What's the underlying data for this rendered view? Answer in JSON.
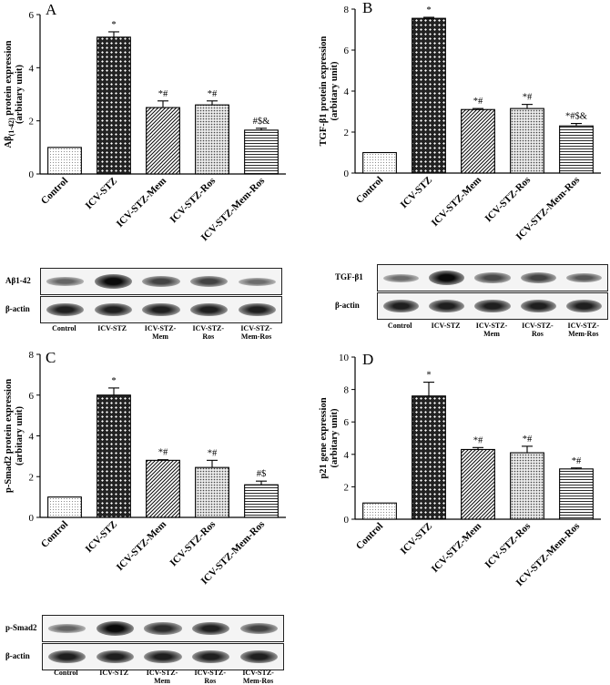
{
  "chart_data": [
    {
      "panel": "A",
      "type": "bar",
      "ylabel_main": "Aβ",
      "ylabel_sub": "(1-42)",
      "ylabel_rest": " protein expression",
      "ylabel2": "(arbitary unit)",
      "categories": [
        "Control",
        "ICV-STZ",
        "ICV-STZ-Mem",
        "ICV-STZ-Ros",
        "ICV-STZ-Mem-Ros"
      ],
      "values": [
        1.0,
        5.15,
        2.5,
        2.6,
        1.65
      ],
      "errors": [
        0.0,
        0.2,
        0.25,
        0.15,
        0.07
      ],
      "annotations": [
        "",
        "*",
        "*#",
        "*#",
        "#$&"
      ],
      "patterns": [
        "dots",
        "cross",
        "diag",
        "grid",
        "horiz"
      ],
      "ylim": [
        0,
        6
      ],
      "yticks": [
        0,
        2,
        4,
        6
      ]
    },
    {
      "panel": "B",
      "type": "bar",
      "ylabel_main": "TGF-β1 protein expression",
      "ylabel2": "(arbitary unit)",
      "categories": [
        "Control",
        "ICV-STZ",
        "ICV-STZ-Mem",
        "ICV-STZ-Ros",
        "ICV-STZ-Mem-Ros"
      ],
      "values": [
        1.0,
        7.55,
        3.1,
        3.15,
        2.3
      ],
      "errors": [
        0.0,
        0.05,
        0.05,
        0.2,
        0.12
      ],
      "annotations": [
        "",
        "*",
        "*#",
        "*#",
        "*#$&"
      ],
      "patterns": [
        "dots",
        "cross",
        "diag",
        "grid",
        "horiz"
      ],
      "ylim": [
        0,
        8
      ],
      "yticks": [
        0,
        2,
        4,
        6,
        8
      ]
    },
    {
      "panel": "C",
      "type": "bar",
      "ylabel_main": "p-Smad2 protein expression",
      "ylabel2": "(arbitary unit)",
      "categories": [
        "Control",
        "ICV-STZ",
        "ICV-STZ-Mem",
        "ICV-STZ-Ros",
        "ICV-STZ-Mem-Ros"
      ],
      "values": [
        1.0,
        6.0,
        2.8,
        2.45,
        1.6
      ],
      "errors": [
        0.0,
        0.35,
        0.03,
        0.35,
        0.18
      ],
      "annotations": [
        "",
        "*",
        "*#",
        "*#",
        "#$"
      ],
      "patterns": [
        "dots",
        "cross",
        "diag",
        "grid",
        "horiz"
      ],
      "ylim": [
        0,
        8
      ],
      "yticks": [
        0,
        2,
        4,
        6,
        8
      ]
    },
    {
      "panel": "D",
      "type": "bar",
      "ylabel_main": "p21 gene expression",
      "ylabel2": "(arbitary unit)",
      "categories": [
        "Control",
        "ICV-STZ",
        "ICV-STZ-Mem",
        "ICV-STZ-Ros",
        "ICV-STZ-Mem-Ros"
      ],
      "values": [
        1.0,
        7.6,
        4.3,
        4.1,
        3.1
      ],
      "errors": [
        0.0,
        0.85,
        0.12,
        0.4,
        0.06
      ],
      "annotations": [
        "",
        "*",
        "*#",
        "*#",
        "*#"
      ],
      "patterns": [
        "dots",
        "cross",
        "diag",
        "grid",
        "horiz"
      ],
      "ylim": [
        0,
        10
      ],
      "yticks": [
        0,
        2,
        4,
        6,
        8,
        10
      ]
    }
  ],
  "blots": [
    {
      "id": "A",
      "rows": [
        "Aβ1-42",
        "β-actin"
      ],
      "lanes": [
        "Control",
        "ICV-STZ",
        "ICV-STZ-\nMem",
        "ICV-STZ-\nRos",
        "ICV-STZ-\nMem-Ros"
      ],
      "intensity": [
        [
          0.35,
          1.0,
          0.6,
          0.6,
          0.3
        ],
        [
          0.85,
          0.85,
          0.85,
          0.85,
          0.85
        ]
      ]
    },
    {
      "id": "B",
      "rows": [
        "TGF-β1",
        "β-actin"
      ],
      "lanes": [
        "Control",
        "ICV-STZ",
        "ICV-STZ-\nMem",
        "ICV-STZ-\nRos",
        "ICV-STZ-\nMem-Ros"
      ],
      "intensity": [
        [
          0.3,
          1.0,
          0.55,
          0.6,
          0.45
        ],
        [
          0.85,
          0.85,
          0.85,
          0.85,
          0.85
        ]
      ]
    },
    {
      "id": "C",
      "rows": [
        "p-Smad2",
        "β-actin"
      ],
      "lanes": [
        "Control",
        "ICV-STZ",
        "ICV-STZ-\nMem",
        "ICV-STZ-\nRos",
        "ICV-STZ-\nMem-Ros"
      ],
      "intensity": [
        [
          0.35,
          1.0,
          0.75,
          0.85,
          0.6
        ],
        [
          0.85,
          0.85,
          0.85,
          0.85,
          0.85
        ]
      ]
    }
  ]
}
